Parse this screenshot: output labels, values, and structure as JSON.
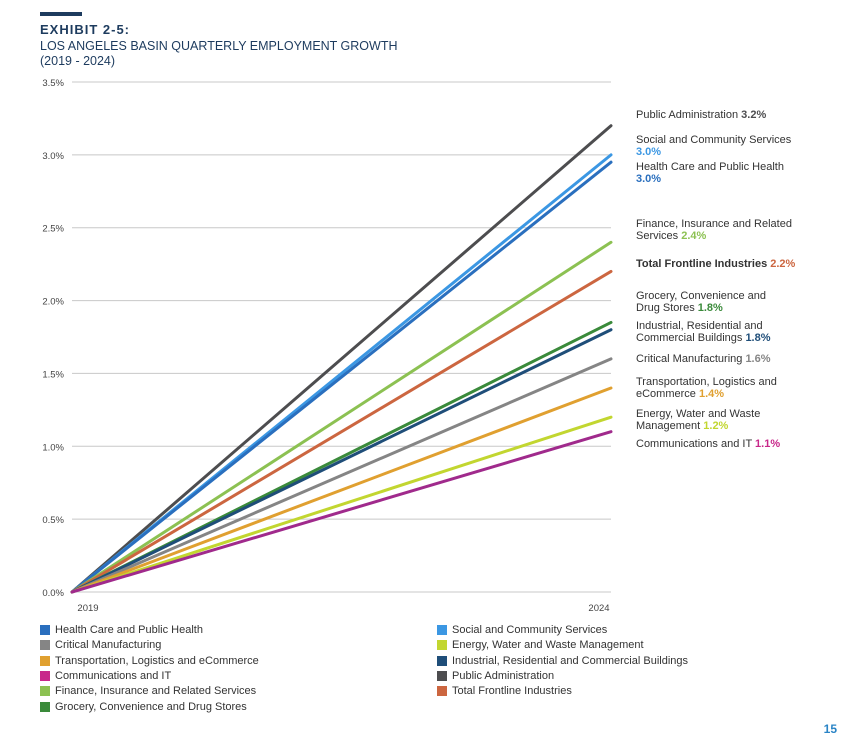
{
  "exhibit": {
    "label": "EXHIBIT 2-5:",
    "title": "LOS ANGELES BASIN QUARTERLY EMPLOYMENT GROWTH",
    "period": "(2019 - 2024)"
  },
  "page_number": "15",
  "chart_data": {
    "type": "line",
    "title": "LOS ANGELES BASIN QUARTERLY EMPLOYMENT GROWTH",
    "x": [
      "2019",
      "2024"
    ],
    "ylim": [
      0,
      3.5
    ],
    "yticks": [
      "0.0%",
      "0.5%",
      "1.0%",
      "1.5%",
      "2.0%",
      "2.5%",
      "3.0%",
      "3.5%"
    ],
    "grid": true,
    "legend_position": "bottom",
    "series": [
      {
        "name": "Public Administration",
        "color": "#4d4d4f",
        "values": [
          0,
          3.2
        ],
        "label_lines": [
          "Public Administration"
        ],
        "value_label": "3.2%",
        "value_color": "#4d4d4f",
        "bold": false
      },
      {
        "name": "Social and Community Services",
        "color": "#3b97e3",
        "values": [
          0,
          3.0
        ],
        "label_lines": [
          "Social and Community Services"
        ],
        "value_label": "3.0%",
        "value_color": "#3b97e3",
        "value_newline": true,
        "bold": false
      },
      {
        "name": "Health Care and Public Health",
        "color": "#2a6fbe",
        "values": [
          0,
          2.95
        ],
        "label_lines": [
          "Health Care and Public Health"
        ],
        "value_label": "3.0%",
        "value_color": "#2a6fbe",
        "value_newline": true,
        "bold": false
      },
      {
        "name": "Finance, Insurance and Related Services",
        "color": "#8cc152",
        "values": [
          0,
          2.4
        ],
        "label_lines": [
          "Finance, Insurance and Related",
          "Services"
        ],
        "value_label": "2.4%",
        "value_color": "#8cc152",
        "bold": false
      },
      {
        "name": "Total Frontline Industries",
        "color": "#cc6640",
        "values": [
          0,
          2.2
        ],
        "label_lines": [
          "Total Frontline Industries"
        ],
        "value_label": "2.2%",
        "value_color": "#cc6640",
        "bold": true
      },
      {
        "name": "Grocery, Convenience and Drug Stores",
        "color": "#3a8a3a",
        "values": [
          0,
          1.85
        ],
        "label_lines": [
          "Grocery, Convenience and",
          "Drug Stores"
        ],
        "value_label": "1.8%",
        "value_color": "#3a8a3a",
        "bold": false
      },
      {
        "name": "Industrial, Residential and Commercial Buildings",
        "color": "#1f4e79",
        "values": [
          0,
          1.8
        ],
        "label_lines": [
          "Industrial, Residential and",
          "Commercial Buildings"
        ],
        "value_label": "1.8%",
        "value_color": "#1f4e79",
        "bold": false
      },
      {
        "name": "Critical Manufacturing",
        "color": "#858585",
        "values": [
          0,
          1.6
        ],
        "label_lines": [
          "Critical Manufacturing"
        ],
        "value_label": "1.6%",
        "value_color": "#858585",
        "bold": false
      },
      {
        "name": "Transportation, Logistics and eCommerce",
        "color": "#e0a030",
        "values": [
          0,
          1.4
        ],
        "label_lines": [
          "Transportation, Logistics and",
          "eCommerce"
        ],
        "value_label": "1.4%",
        "value_color": "#e0a030",
        "bold": false
      },
      {
        "name": "Energy, Water and Waste Management",
        "color": "#c2d630",
        "values": [
          0,
          1.2
        ],
        "label_lines": [
          "Energy, Water and Waste",
          "Management"
        ],
        "value_label": "1.2%",
        "value_color": "#c2d630",
        "bold": false
      },
      {
        "name": "Communications and IT",
        "color": "#a02a8c",
        "values": [
          0,
          1.1
        ],
        "label_lines": [
          "Communications and IT"
        ],
        "value_label": "1.1%",
        "value_color": "#c8288a",
        "bold": false
      }
    ],
    "legend": [
      {
        "name": "Health Care and Public Health",
        "color": "#2a6fbe"
      },
      {
        "name": "Social and Community Services",
        "color": "#3b97e3"
      },
      {
        "name": "Critical Manufacturing",
        "color": "#858585"
      },
      {
        "name": "Energy, Water and Waste Management",
        "color": "#c2d630"
      },
      {
        "name": "Transportation, Logistics and eCommerce",
        "color": "#e0a030"
      },
      {
        "name": "Industrial, Residential and Commercial Buildings",
        "color": "#1f4e79"
      },
      {
        "name": "Communications and IT",
        "color": "#c8288a"
      },
      {
        "name": "Public Administration",
        "color": "#4d4d4f"
      },
      {
        "name": "Finance, Insurance and Related Services",
        "color": "#8cc152"
      },
      {
        "name": "Total Frontline Industries",
        "color": "#cc6640"
      },
      {
        "name": "Grocery, Convenience and Drug Stores",
        "color": "#3a8a3a"
      }
    ]
  }
}
